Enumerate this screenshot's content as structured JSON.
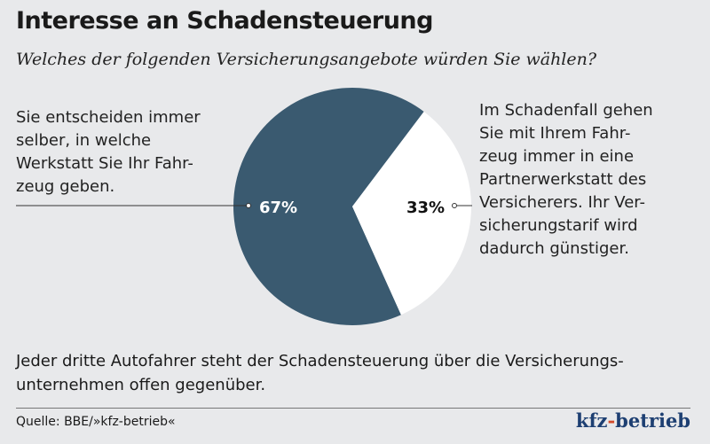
{
  "title": "Interesse an Schadensteuerung",
  "subtitle": "Welches der folgenden Versicherungsangebote würden Sie wählen?",
  "chart_data": {
    "type": "pie",
    "slices": [
      {
        "label": "Sie entscheiden immer selber, in welche Werkstatt Sie Ihr Fahrzeug geben.",
        "value": 67,
        "value_label": "67%",
        "color": "#3a5a70"
      },
      {
        "label": "Im Schadenfall gehen Sie mit Ihrem Fahrzeug immer in eine Partnerwerkstatt des Versicherers. Ihr Versicherungstarif wird dadurch günstiger.",
        "value": 33,
        "value_label": "33%",
        "color": "#ffffff"
      }
    ],
    "label_left_lines": [
      "Sie entscheiden immer",
      "selber, in welche",
      "Werkstatt Sie Ihr Fahr-",
      "zeug geben."
    ],
    "label_right_lines": [
      "Im Schadenfall gehen",
      "Sie mit Ihrem Fahr-",
      "zeug immer in eine",
      "Partnerwerkstatt des",
      "Versicherers. Ihr Ver-",
      "sicherungstarif wird",
      "dadurch günstiger."
    ]
  },
  "note": "Jeder dritte Autofahrer steht der Schadensteuerung über die Versicherungs- unternehmen offen gegenüber.",
  "source": "Quelle: BBE/»kfz-betrieb«",
  "logo": {
    "part1": "kfz",
    "dash": "-",
    "part2": "betrieb"
  }
}
